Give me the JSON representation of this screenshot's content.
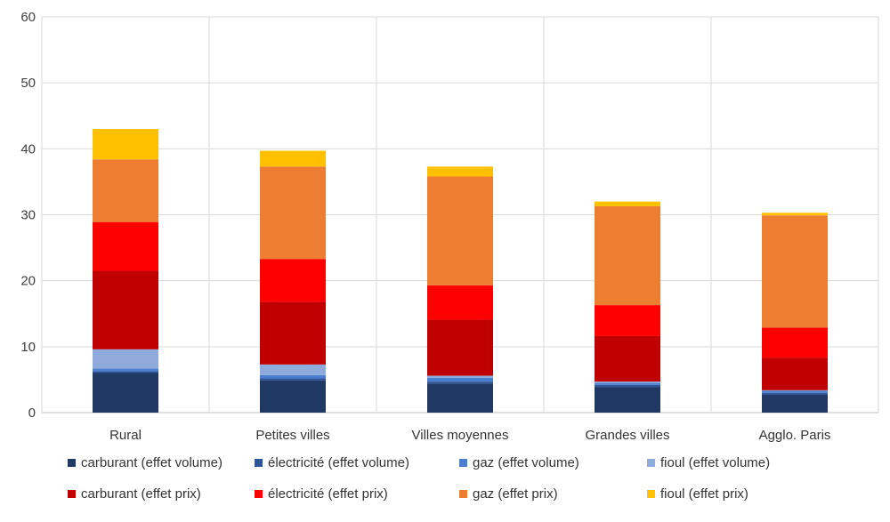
{
  "chart_data": {
    "type": "bar",
    "stacked": true,
    "title": "",
    "xlabel": "",
    "ylabel": "",
    "ylim": [
      0,
      60
    ],
    "yticks": [
      0,
      10,
      20,
      30,
      40,
      50,
      60
    ],
    "grid": true,
    "legend_position": "bottom",
    "categories": [
      "Rural",
      "Petites villes",
      "Villes moyennes",
      "Grandes villes",
      "Agglo. Paris"
    ],
    "series": [
      {
        "name": "carburant (effet volume)",
        "color": "#1f3864",
        "values": [
          6.0,
          4.9,
          4.4,
          3.9,
          2.7
        ]
      },
      {
        "name": "électricité (effet volume)",
        "color": "#2e5597",
        "values": [
          0.3,
          0.3,
          0.3,
          0.3,
          0.3
        ]
      },
      {
        "name": "gaz (effet volume)",
        "color": "#4a7fcf",
        "values": [
          0.4,
          0.5,
          0.6,
          0.3,
          0.3
        ]
      },
      {
        "name": "fioul (effet volume)",
        "color": "#8fabdb",
        "values": [
          2.9,
          1.6,
          0.3,
          0.2,
          0.1
        ]
      },
      {
        "name": "carburant (effet prix)",
        "color": "#c00000",
        "values": [
          11.9,
          9.5,
          8.5,
          6.9,
          4.9
        ]
      },
      {
        "name": "électricité (effet prix)",
        "color": "#ff0000",
        "values": [
          7.4,
          6.5,
          5.2,
          4.7,
          4.6
        ]
      },
      {
        "name": "gaz (effet prix)",
        "color": "#ed7d31",
        "values": [
          9.5,
          14.0,
          16.5,
          15.0,
          17.0
        ]
      },
      {
        "name": "fioul (effet prix)",
        "color": "#ffc000",
        "values": [
          4.6,
          2.4,
          1.5,
          0.7,
          0.4
        ]
      }
    ]
  }
}
